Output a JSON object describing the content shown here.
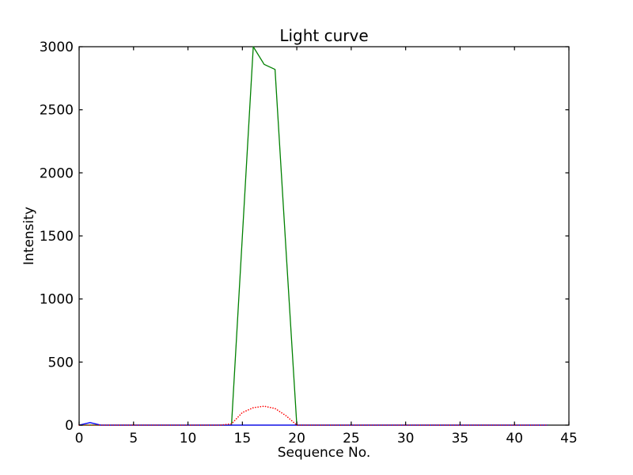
{
  "figure": {
    "background": "#ffffff",
    "frame_color": "#000000"
  },
  "chart_data": {
    "type": "line",
    "title": "Light curve",
    "xlabel": "Sequence No.",
    "ylabel": "Intensity",
    "xlim": [
      0,
      45
    ],
    "ylim": [
      0,
      3000
    ],
    "xticks": [
      0,
      5,
      10,
      15,
      20,
      25,
      30,
      35,
      40,
      45
    ],
    "yticks": [
      0,
      500,
      1000,
      1500,
      2000,
      2500,
      3000
    ],
    "grid": false,
    "legend": false,
    "x": [
      0,
      1,
      2,
      3,
      4,
      5,
      6,
      7,
      8,
      9,
      10,
      11,
      12,
      13,
      14,
      15,
      16,
      17,
      18,
      19,
      20,
      21,
      22,
      23,
      24,
      25,
      26,
      27,
      28,
      29,
      30,
      31,
      32,
      33,
      34,
      35,
      36,
      37,
      38,
      39,
      40,
      41,
      42,
      43
    ],
    "series": [
      {
        "name": "green-solid-line",
        "color": "#008000",
        "line_style": "solid",
        "values": [
          0,
          0,
          0,
          0,
          0,
          0,
          0,
          0,
          0,
          0,
          0,
          0,
          0,
          0,
          0,
          1500,
          3000,
          2860,
          2820,
          1400,
          0,
          0,
          0,
          0,
          0,
          0,
          0,
          0,
          0,
          0,
          0,
          0,
          0,
          0,
          0,
          0,
          0,
          0,
          0,
          0,
          0,
          0,
          0,
          0
        ]
      },
      {
        "name": "blue-solid-line",
        "color": "#0000ff",
        "line_style": "solid",
        "values": [
          0,
          20,
          0,
          0,
          0,
          0,
          0,
          0,
          0,
          0,
          0,
          0,
          0,
          0,
          0,
          0,
          0,
          0,
          0,
          0,
          0,
          0,
          0,
          0,
          0,
          0,
          0,
          0,
          0,
          0,
          0,
          0,
          0,
          0,
          0,
          0,
          0,
          0,
          0,
          0,
          0,
          0,
          0,
          0
        ]
      },
      {
        "name": "red-dotted-line",
        "color": "#ff0000",
        "line_style": "dotted",
        "values": [
          0,
          0,
          0,
          0,
          0,
          0,
          0,
          0,
          0,
          0,
          0,
          0,
          0,
          0,
          10,
          100,
          138,
          150,
          132,
          75,
          0,
          0,
          0,
          0,
          0,
          0,
          0,
          0,
          0,
          0,
          0,
          0,
          0,
          0,
          0,
          0,
          0,
          0,
          0,
          0,
          0,
          0,
          0,
          0
        ]
      }
    ]
  }
}
